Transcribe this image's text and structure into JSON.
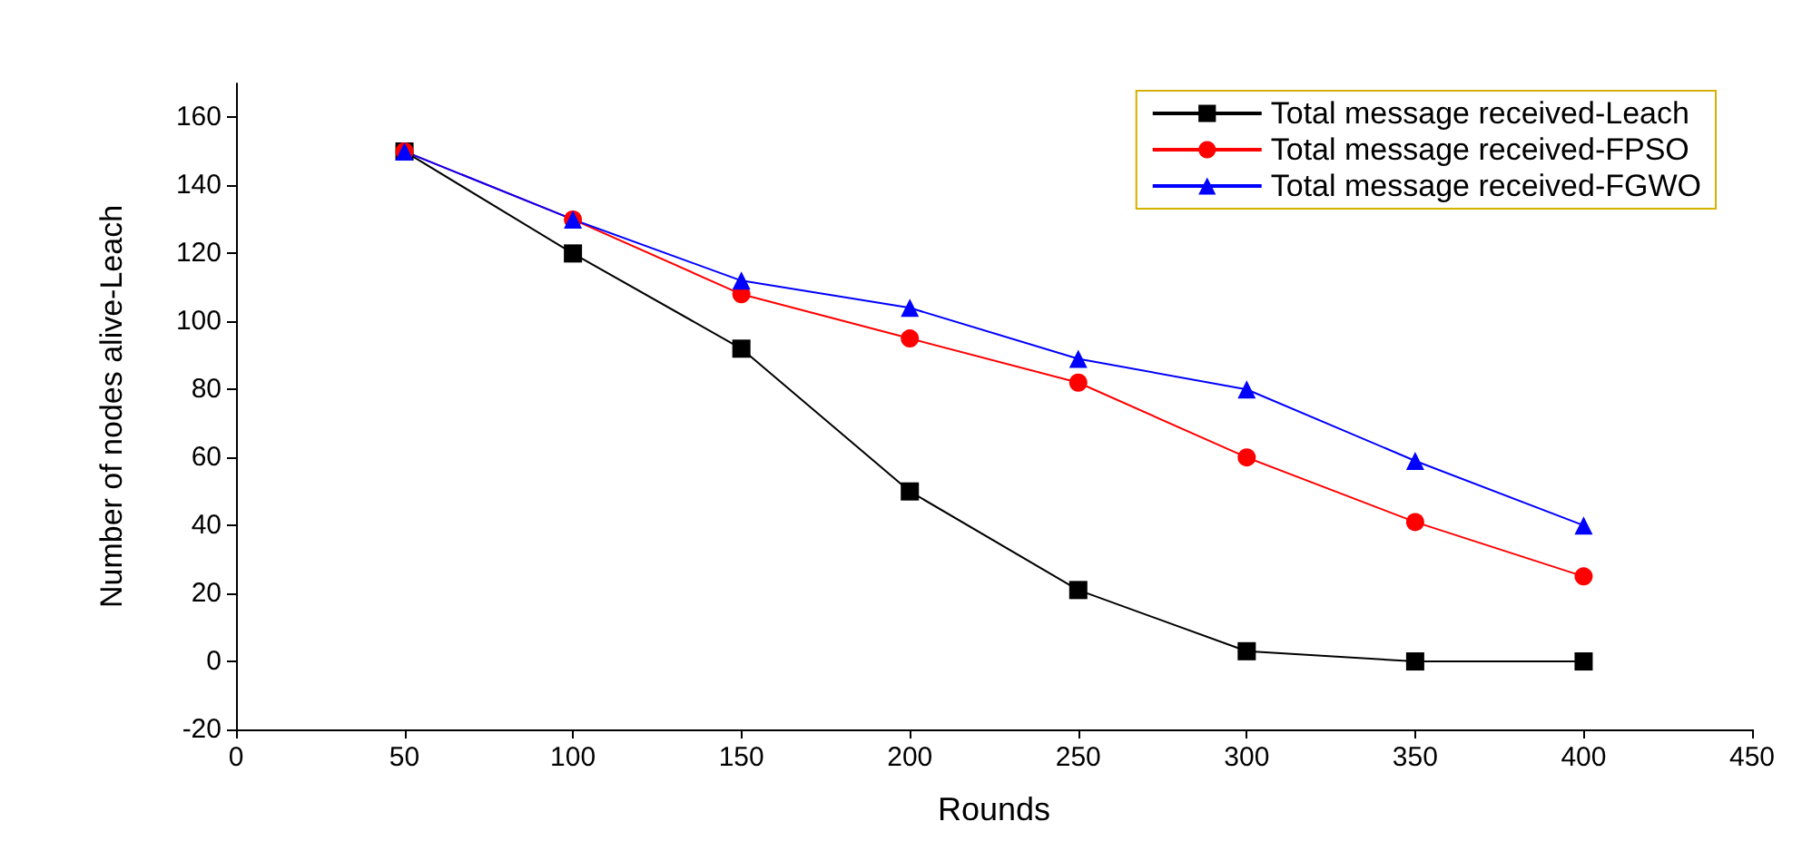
{
  "chart_data": {
    "type": "line",
    "xlabel": "Rounds",
    "ylabel": "Number of nodes alive-Leach",
    "x": [
      50,
      100,
      150,
      200,
      250,
      300,
      350,
      400
    ],
    "series": [
      {
        "name": "Total message received-Leach",
        "color": "#000000",
        "marker": "square",
        "values": [
          150,
          120,
          92,
          50,
          21,
          3,
          0,
          0
        ]
      },
      {
        "name": "Total message received-FPSO",
        "color": "#ff0000",
        "marker": "circle",
        "values": [
          150,
          130,
          108,
          95,
          82,
          60,
          41,
          25
        ]
      },
      {
        "name": "Total message received-FGWO",
        "color": "#0000ff",
        "marker": "triangle",
        "values": [
          150,
          130,
          112,
          104,
          89,
          80,
          59,
          40
        ]
      }
    ],
    "xlim": [
      0,
      450
    ],
    "xticks": [
      0,
      50,
      100,
      150,
      200,
      250,
      300,
      350,
      400,
      450
    ],
    "ylim": [
      -20,
      170
    ],
    "yticks": [
      -20,
      0,
      20,
      40,
      60,
      80,
      100,
      120,
      140,
      160
    ],
    "grid": false,
    "legend": "top right",
    "line_style": "solid"
  }
}
